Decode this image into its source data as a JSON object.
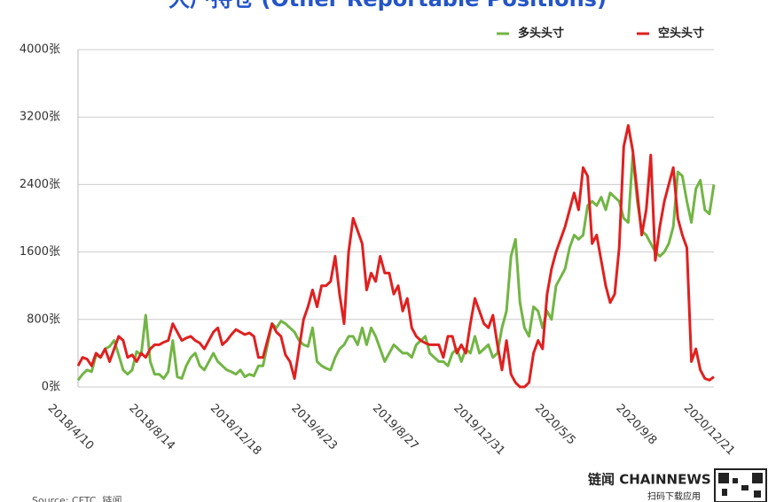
{
  "chart_data": {
    "type": "line",
    "title": "大户持仓 (Other Reportable Positions)",
    "source": "Source: CFTC, 链闻",
    "brand": "链闻 CHAINNEWS",
    "brand_sub": "扫码下载应用",
    "categories": [
      "2018/4/10",
      null,
      null,
      null,
      null,
      null,
      null,
      null,
      null,
      null,
      null,
      null,
      null,
      null,
      null,
      null,
      null,
      null,
      "2018/8/14",
      null,
      null,
      null,
      null,
      null,
      null,
      null,
      null,
      null,
      null,
      null,
      null,
      null,
      null,
      null,
      null,
      null,
      "2018/12/18",
      null,
      null,
      null,
      null,
      null,
      null,
      null,
      null,
      null,
      null,
      null,
      null,
      null,
      null,
      null,
      null,
      null,
      "2019/4/23",
      null,
      null,
      null,
      null,
      null,
      null,
      null,
      null,
      null,
      null,
      null,
      null,
      null,
      null,
      null,
      null,
      null,
      "2019/8/27",
      null,
      null,
      null,
      null,
      null,
      null,
      null,
      null,
      null,
      null,
      null,
      null,
      null,
      null,
      null,
      null,
      null,
      "2019/12/31",
      null,
      null,
      null,
      null,
      null,
      null,
      null,
      null,
      null,
      null,
      null,
      null,
      null,
      null,
      null,
      null,
      null,
      "2020/5/5",
      null,
      null,
      null,
      null,
      null,
      null,
      null,
      null,
      null,
      null,
      null,
      null,
      null,
      null,
      null,
      null,
      null,
      "2020/9/8",
      null,
      null,
      null,
      null,
      null,
      null,
      null,
      null,
      null,
      null,
      null,
      null,
      null,
      null,
      "2020/12/21"
    ],
    "series": [
      {
        "name": "多头头寸",
        "color": "#72b544",
        "values": [
          80,
          150,
          200,
          180,
          380,
          350,
          450,
          480,
          550,
          380,
          200,
          150,
          200,
          420,
          380,
          850,
          300,
          150,
          150,
          100,
          180,
          550,
          120,
          100,
          250,
          350,
          400,
          250,
          200,
          300,
          400,
          300,
          250,
          200,
          180,
          150,
          200,
          120,
          150,
          130,
          250,
          250,
          500,
          750,
          700,
          780,
          750,
          700,
          650,
          550,
          500,
          480,
          700,
          300,
          250,
          220,
          200,
          350,
          450,
          500,
          600,
          600,
          500,
          700,
          500,
          700,
          600,
          450,
          300,
          400,
          500,
          450,
          400,
          400,
          350,
          500,
          550,
          600,
          400,
          350,
          300,
          300,
          250,
          400,
          450,
          300,
          450,
          400,
          600,
          400,
          450,
          500,
          350,
          400,
          700,
          900,
          1550,
          1750,
          1000,
          700,
          600,
          950,
          900,
          700,
          900,
          800,
          1200,
          1300,
          1400,
          1650,
          1800,
          1750,
          1800,
          2150,
          2200,
          2150,
          2250,
          2100,
          2300,
          2250,
          2200,
          2000,
          1950,
          2750,
          2200,
          1850,
          1800,
          1700,
          1600,
          1550,
          1600,
          1700,
          1900,
          2550,
          2500,
          2200,
          1950,
          2350,
          2450,
          2100,
          2050,
          2400
        ]
      },
      {
        "name": "空头头寸",
        "color": "#e02020",
        "values": [
          250,
          350,
          330,
          250,
          400,
          350,
          450,
          300,
          450,
          600,
          550,
          350,
          380,
          300,
          400,
          350,
          450,
          500,
          500,
          530,
          550,
          750,
          650,
          550,
          580,
          600,
          550,
          520,
          450,
          550,
          650,
          700,
          500,
          550,
          620,
          680,
          650,
          620,
          640,
          600,
          350,
          350,
          550,
          750,
          650,
          600,
          380,
          300,
          100,
          450,
          800,
          950,
          1150,
          950,
          1200,
          1200,
          1250,
          1550,
          1100,
          750,
          1600,
          2000,
          1850,
          1700,
          1150,
          1350,
          1250,
          1550,
          1350,
          1350,
          1100,
          1200,
          900,
          1050,
          700,
          600,
          550,
          520,
          500,
          500,
          500,
          350,
          600,
          600,
          400,
          500,
          400,
          750,
          1050,
          900,
          750,
          700,
          850,
          500,
          200,
          550,
          150,
          50,
          0,
          0,
          50,
          400,
          550,
          450,
          1100,
          1400,
          1600,
          1750,
          1900,
          2100,
          2300,
          2100,
          2600,
          2500,
          1700,
          1800,
          1500,
          1200,
          1000,
          1100,
          1650,
          2850,
          3100,
          2800,
          2300,
          1800,
          2100,
          2750,
          1500,
          1900,
          2200,
          2400,
          2600,
          2000,
          1800,
          1650,
          300,
          450,
          200,
          100,
          80,
          120
        ]
      }
    ],
    "ylim": [
      0,
      4000
    ],
    "yticks": [
      {
        "value": 0,
        "label": "0张"
      },
      {
        "value": 800,
        "label": "800张"
      },
      {
        "value": 1600,
        "label": "1600张"
      },
      {
        "value": 2400,
        "label": "2400张"
      },
      {
        "value": 3200,
        "label": "3200张"
      },
      {
        "value": 4000,
        "label": "4000张"
      }
    ],
    "grid": true,
    "legend": "top-right"
  }
}
